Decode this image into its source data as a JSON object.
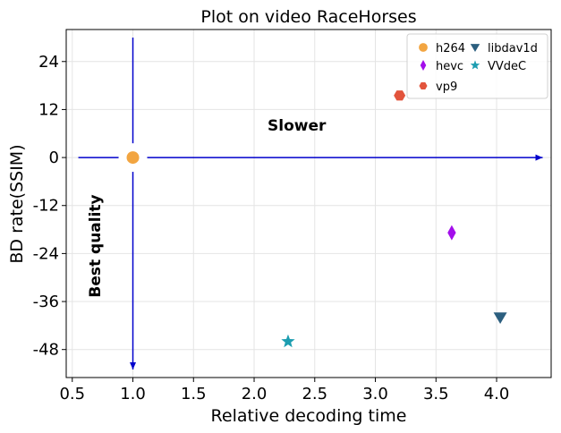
{
  "chart_data": {
    "type": "scatter",
    "title": "Plot on video RaceHorses",
    "xlabel": "Relative decoding time",
    "ylabel": "BD rate(SSIM)",
    "xlim": [
      0.45,
      4.45
    ],
    "ylim": [
      -55,
      32
    ],
    "xticks": [
      0.5,
      1.0,
      1.5,
      2.0,
      2.5,
      3.0,
      3.5,
      4.0
    ],
    "xtick_labels": [
      "0.5",
      "1.0",
      "1.5",
      "2.0",
      "2.5",
      "3.0",
      "3.5",
      "4.0"
    ],
    "yticks": [
      24,
      12,
      0,
      -12,
      -24,
      -36,
      -48
    ],
    "ytick_labels": [
      "24",
      "12",
      "0",
      "-12",
      "-24",
      "-36",
      "-48"
    ],
    "grid": true,
    "legend_position": "top-right",
    "series": [
      {
        "name": "h264",
        "marker": "circle",
        "color": "#F2A541",
        "x": [
          1.0
        ],
        "y": [
          0.0
        ]
      },
      {
        "name": "hevc",
        "marker": "thin-diamond",
        "color": "#A30EEB",
        "x": [
          3.63
        ],
        "y": [
          -18.8
        ]
      },
      {
        "name": "vp9",
        "marker": "hexagon",
        "color": "#E2543C",
        "x": [
          3.2
        ],
        "y": [
          15.5
        ]
      },
      {
        "name": "libdav1d",
        "marker": "triangle-down",
        "color": "#2C5F7F",
        "x": [
          4.03
        ],
        "y": [
          -40.0
        ]
      },
      {
        "name": "VVdeC",
        "marker": "star",
        "color": "#1C9DB0",
        "x": [
          2.28
        ],
        "y": [
          -46.0
        ]
      }
    ],
    "legend_order": [
      "h264",
      "hevc",
      "vp9",
      "libdav1d",
      "VVdeC"
    ],
    "annotations": [
      {
        "text": "Slower",
        "x": 2.1,
        "y": 6
      },
      {
        "text": "Best quality",
        "x": 0.7,
        "y": -22
      }
    ],
    "arrows": [
      {
        "from": [
          0.55,
          0
        ],
        "to": [
          4.38,
          0
        ],
        "color": "#0000CC"
      },
      {
        "from": [
          1.0,
          30
        ],
        "to": [
          1.0,
          -53
        ],
        "color": "#0000CC"
      }
    ]
  }
}
